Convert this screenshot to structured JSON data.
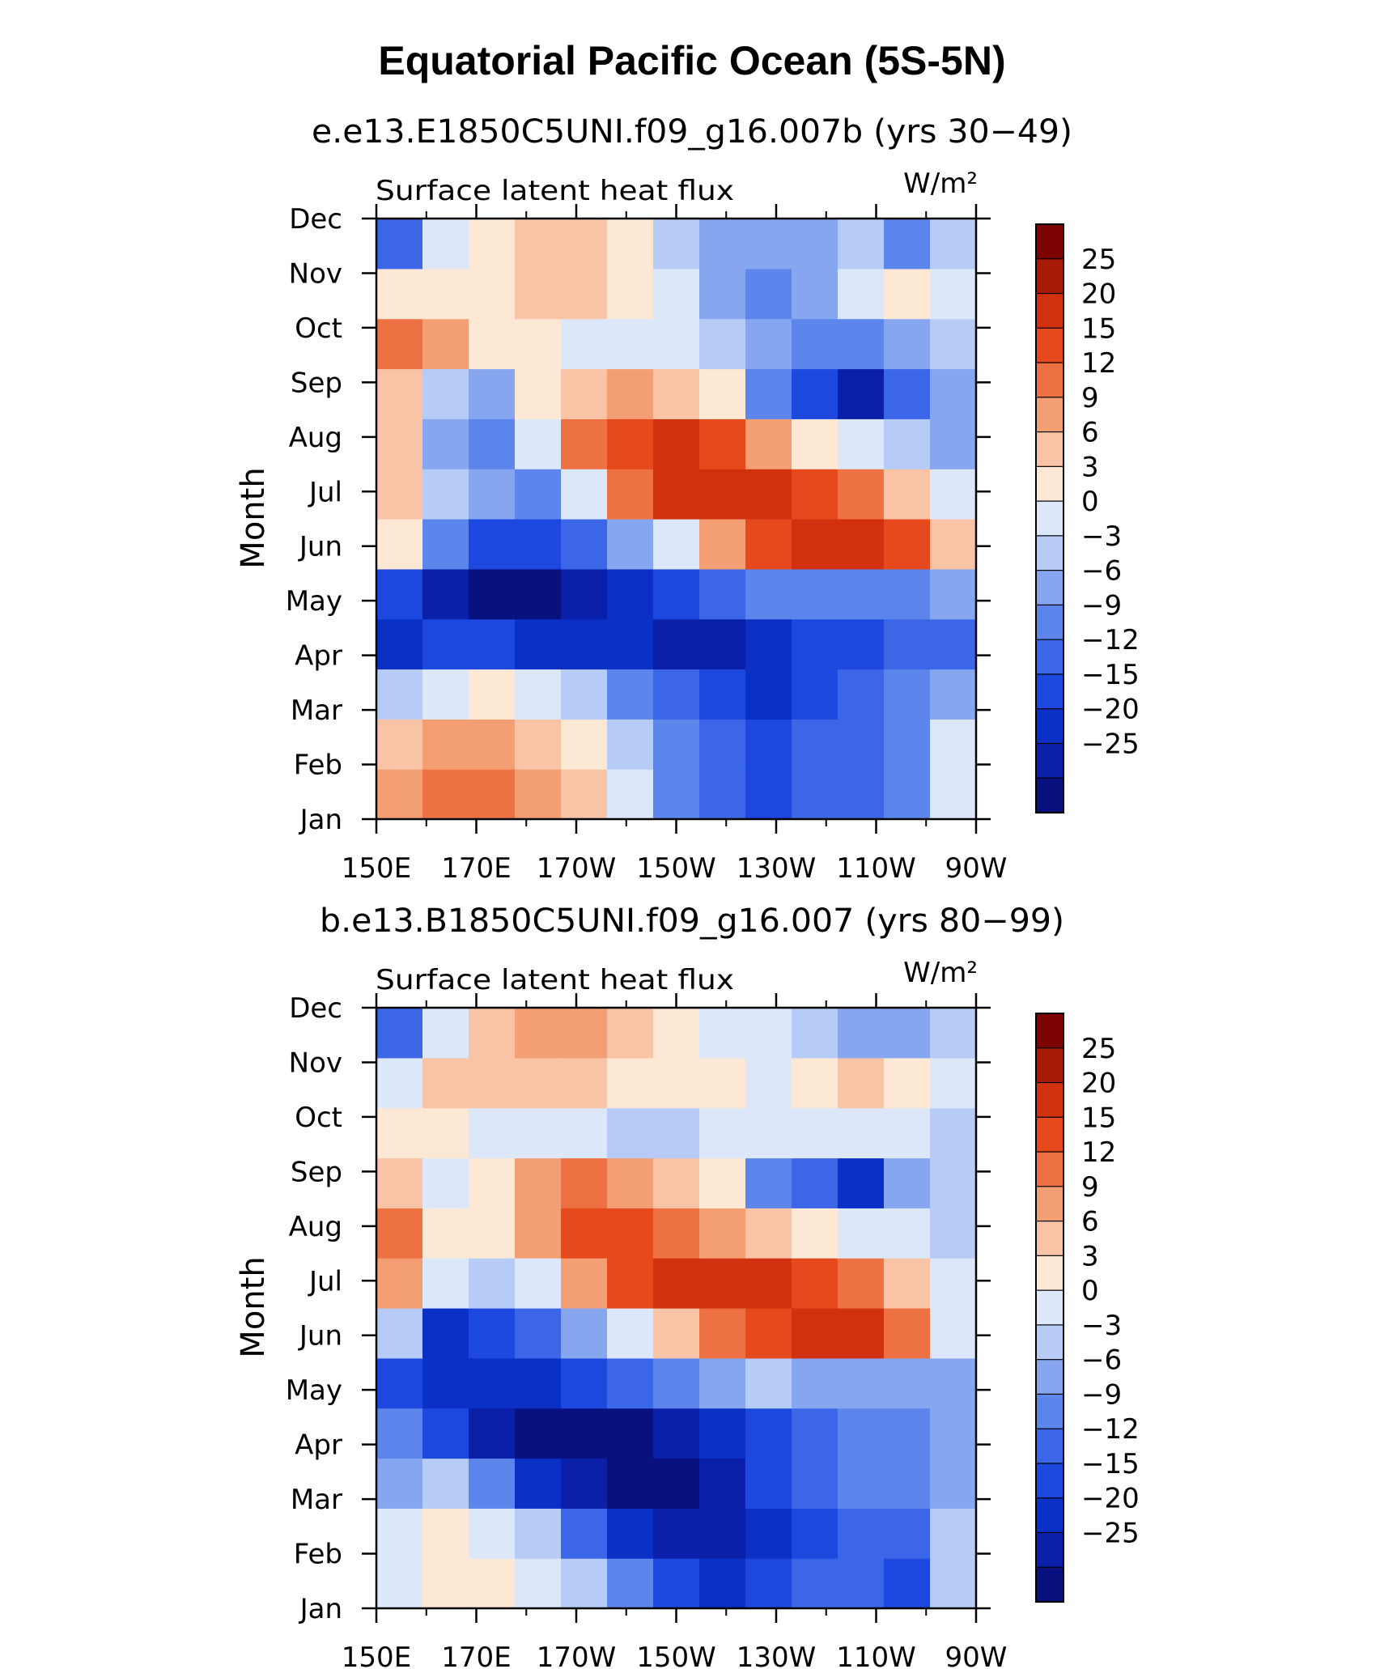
{
  "figure": {
    "title": "Equatorial Pacific Ocean (5S-5N)"
  },
  "chart_data": [
    {
      "type": "heatmap",
      "subtitle": "e.e13.E1850C5UNI.f09_g16.007b (yrs 30−49)",
      "left_label": "Surface latent heat flux",
      "right_label": "W/m²",
      "xlabel": "",
      "ylabel": "Month",
      "x_ticks": [
        "150E",
        "170E",
        "170W",
        "150W",
        "130W",
        "110W",
        "90W"
      ],
      "y_ticks": [
        "Jan",
        "Feb",
        "Mar",
        "Apr",
        "May",
        "Jun",
        "Jul",
        "Aug",
        "Sep",
        "Oct",
        "Nov",
        "Dec"
      ],
      "x": [
        150,
        160,
        170,
        180,
        190,
        200,
        210,
        220,
        230,
        240,
        250,
        260,
        270
      ],
      "z": [
        [
          12,
          15,
          15,
          12,
          9,
          3,
          -6,
          -9,
          -12,
          -9,
          -9,
          -6,
          3
        ],
        [
          9,
          12,
          12,
          9,
          6,
          0,
          -6,
          -9,
          -12,
          -9,
          -9,
          -6,
          3
        ],
        [
          0,
          3,
          6,
          3,
          0,
          -6,
          -9,
          -12,
          -15,
          -12,
          -9,
          -6,
          -3
        ],
        [
          -15,
          -12,
          -12,
          -15,
          -15,
          -15,
          -20,
          -20,
          -15,
          -12,
          -12,
          -9,
          -9
        ],
        [
          -12,
          -20,
          -25,
          -25,
          -20,
          -15,
          -12,
          -9,
          -6,
          -6,
          -6,
          -6,
          -3
        ],
        [
          6,
          -6,
          -12,
          -12,
          -9,
          -3,
          3,
          12,
          20,
          25,
          25,
          20,
          9
        ],
        [
          9,
          0,
          -3,
          -6,
          3,
          15,
          25,
          25,
          25,
          20,
          15,
          9,
          3
        ],
        [
          9,
          -3,
          -6,
          3,
          15,
          20,
          25,
          20,
          12,
          6,
          3,
          0,
          -3
        ],
        [
          9,
          0,
          -3,
          6,
          9,
          12,
          9,
          6,
          -6,
          -12,
          -20,
          -9,
          -3
        ],
        [
          15,
          12,
          6,
          6,
          3,
          3,
          3,
          0,
          -3,
          -6,
          -6,
          -3,
          0
        ],
        [
          6,
          6,
          6,
          9,
          9,
          6,
          3,
          -3,
          -6,
          -3,
          3,
          6,
          3
        ],
        [
          -9,
          3,
          6,
          9,
          9,
          6,
          0,
          -3,
          -3,
          -3,
          0,
          -6,
          0
        ]
      ]
    },
    {
      "type": "heatmap",
      "subtitle": "b.e13.B1850C5UNI.f09_g16.007 (yrs 80−99)",
      "left_label": "Surface latent heat flux",
      "right_label": "W/m²",
      "xlabel": "",
      "ylabel": "Month",
      "x_ticks": [
        "150E",
        "170E",
        "170W",
        "150W",
        "130W",
        "110W",
        "90W"
      ],
      "y_ticks": [
        "Jan",
        "Feb",
        "Mar",
        "Apr",
        "May",
        "Jun",
        "Jul",
        "Aug",
        "Sep",
        "Oct",
        "Nov",
        "Dec"
      ],
      "x": [
        150,
        160,
        170,
        180,
        190,
        200,
        210,
        220,
        230,
        240,
        250,
        260,
        270
      ],
      "z": [
        [
          3,
          6,
          6,
          3,
          0,
          -6,
          -12,
          -15,
          -12,
          -9,
          -9,
          -12,
          0
        ],
        [
          3,
          6,
          3,
          0,
          -9,
          -15,
          -20,
          -20,
          -15,
          -12,
          -9,
          -9,
          0
        ],
        [
          -3,
          0,
          -6,
          -15,
          -20,
          -25,
          -25,
          -20,
          -12,
          -9,
          -6,
          -6,
          -3
        ],
        [
          -6,
          -12,
          -20,
          -25,
          -25,
          -25,
          -20,
          -15,
          -12,
          -9,
          -6,
          -6,
          -3
        ],
        [
          -12,
          -15,
          -15,
          -15,
          -12,
          -9,
          -6,
          -3,
          0,
          -3,
          -3,
          -3,
          -3
        ],
        [
          0,
          -15,
          -12,
          -9,
          -3,
          3,
          9,
          15,
          20,
          25,
          25,
          15,
          3
        ],
        [
          12,
          3,
          0,
          3,
          12,
          20,
          25,
          25,
          25,
          20,
          15,
          9,
          3
        ],
        [
          15,
          6,
          6,
          12,
          20,
          20,
          15,
          12,
          9,
          6,
          3,
          3,
          0
        ],
        [
          9,
          3,
          6,
          12,
          15,
          12,
          9,
          6,
          -6,
          -9,
          -15,
          -3,
          0
        ],
        [
          6,
          6,
          3,
          3,
          3,
          0,
          0,
          3,
          3,
          3,
          3,
          3,
          0
        ],
        [
          3,
          9,
          9,
          9,
          9,
          6,
          6,
          6,
          3,
          6,
          9,
          6,
          3
        ],
        [
          -9,
          3,
          9,
          12,
          12,
          9,
          6,
          3,
          3,
          0,
          -3,
          -3,
          0
        ]
      ]
    }
  ],
  "colorbar": {
    "labels": [
      "25",
      "20",
      "15",
      "12",
      "9",
      "6",
      "3",
      "0",
      "−3",
      "−6",
      "−9",
      "−12",
      "−15",
      "−20",
      "−25"
    ],
    "levels": [
      -25,
      -20,
      -15,
      -12,
      -9,
      -6,
      -3,
      0,
      3,
      6,
      9,
      12,
      15,
      20,
      25
    ],
    "colors": [
      "#08117f",
      "#0a20a8",
      "#0b30c6",
      "#1d48e0",
      "#3b66e8",
      "#5c86ec",
      "#86a7f0",
      "#b6ccf6",
      "#dce8fa",
      "#fde8d6",
      "#f9c4a6",
      "#f49e74",
      "#ee7143",
      "#e64a1c",
      "#d23110",
      "#a81b06",
      "#7d0202"
    ]
  }
}
